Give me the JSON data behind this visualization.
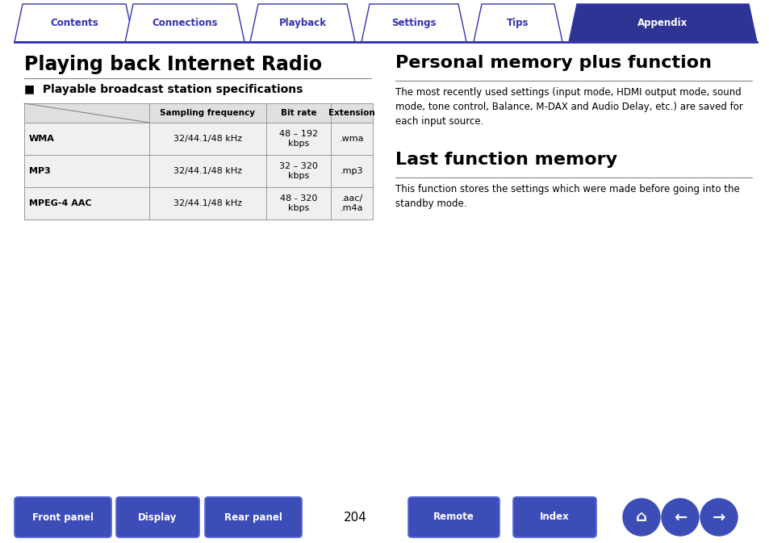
{
  "bg_color": "#ffffff",
  "nav_tabs": [
    "Contents",
    "Connections",
    "Playback",
    "Settings",
    "Tips",
    "Appendix"
  ],
  "nav_active": 5,
  "nav_color_active": "#2d3494",
  "nav_color_inactive": "#ffffff",
  "nav_text_color_active": "#ffffff",
  "nav_text_color_inactive": "#3333aa",
  "nav_border_color": "#3333aa",
  "left_title": "Playing back Internet Radio",
  "left_subtitle": "■  Playable broadcast station specifications",
  "table_headers": [
    "Sampling frequency",
    "Bit rate",
    "Extension"
  ],
  "table_rows": [
    [
      "WMA",
      "32/44.1/48 kHz",
      "48 – 192\nkbps",
      ".wma"
    ],
    [
      "MP3",
      "32/44.1/48 kHz",
      "32 – 320\nkbps",
      ".mp3"
    ],
    [
      "MPEG-4 AAC",
      "32/44.1/48 kHz",
      "48 - 320\nkbps",
      ".aac/\n.m4a"
    ]
  ],
  "right_title1": "Personal memory plus function",
  "right_text1": "The most recently used settings (input mode, HDMI output mode, sound\nmode, tone control, Balance, M-DAX and Audio Delay, etc.) are saved for\neach input source.",
  "right_title2": "Last function memory",
  "right_text2": "This function stores the settings which were made before going into the\nstandby mode.",
  "bottom_buttons": [
    "Front panel",
    "Display",
    "Rear panel",
    "Remote",
    "Index"
  ],
  "page_number": "204",
  "button_color": "#3d4db7",
  "title_color": "#000000",
  "text_color": "#000000",
  "table_header_bg": "#e0e0e0",
  "table_row_bg": "#f0f0f0",
  "table_border_color": "#999999",
  "divider_color": "#555555"
}
